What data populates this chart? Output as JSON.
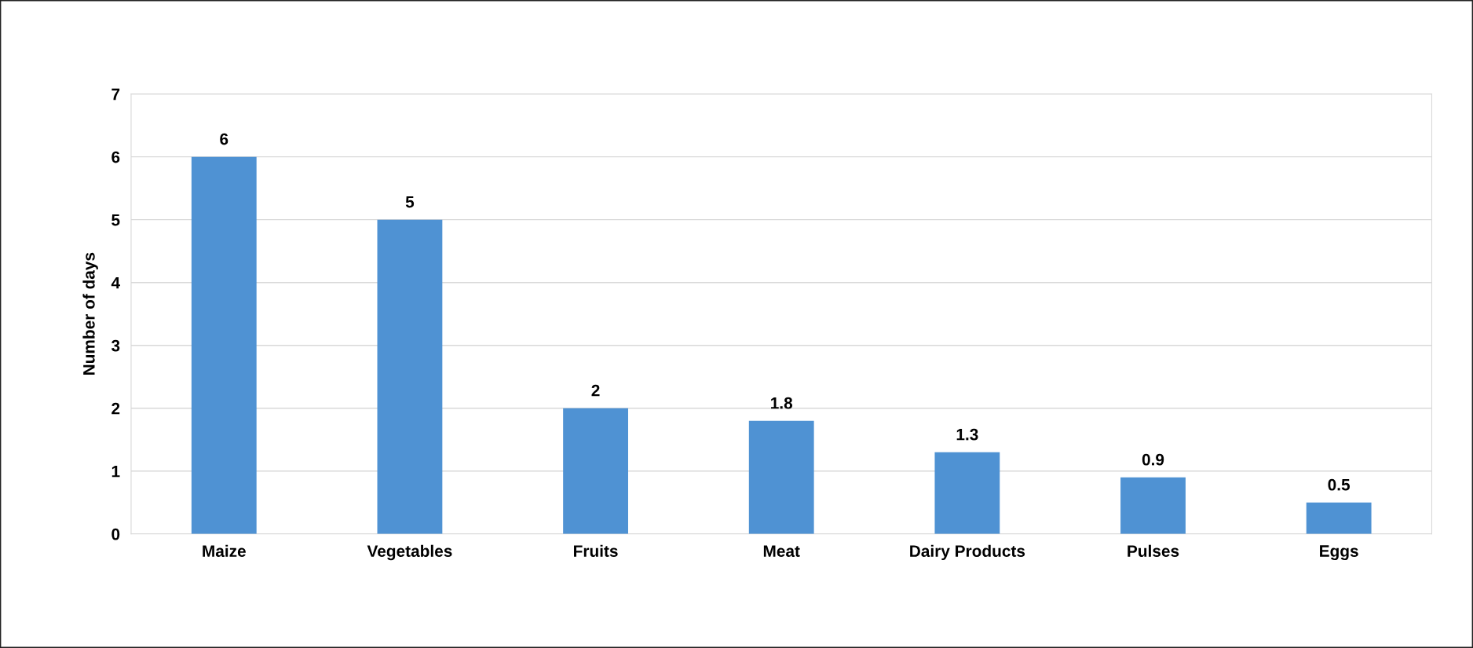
{
  "chart_data": {
    "type": "bar",
    "ylabel": "Number of days",
    "categories": [
      "Maize",
      "Vegetables",
      "Fruits",
      "Meat",
      "Dairy Products",
      "Pulses",
      "Eggs"
    ],
    "values": [
      6,
      5,
      2,
      1.8,
      1.3,
      0.9,
      0.5
    ],
    "color": "#4f92d3",
    "ylim": [
      0,
      7
    ],
    "yticks": [
      0,
      1,
      2,
      3,
      4,
      5,
      6,
      7
    ],
    "grid": "y",
    "data_labels": true
  }
}
